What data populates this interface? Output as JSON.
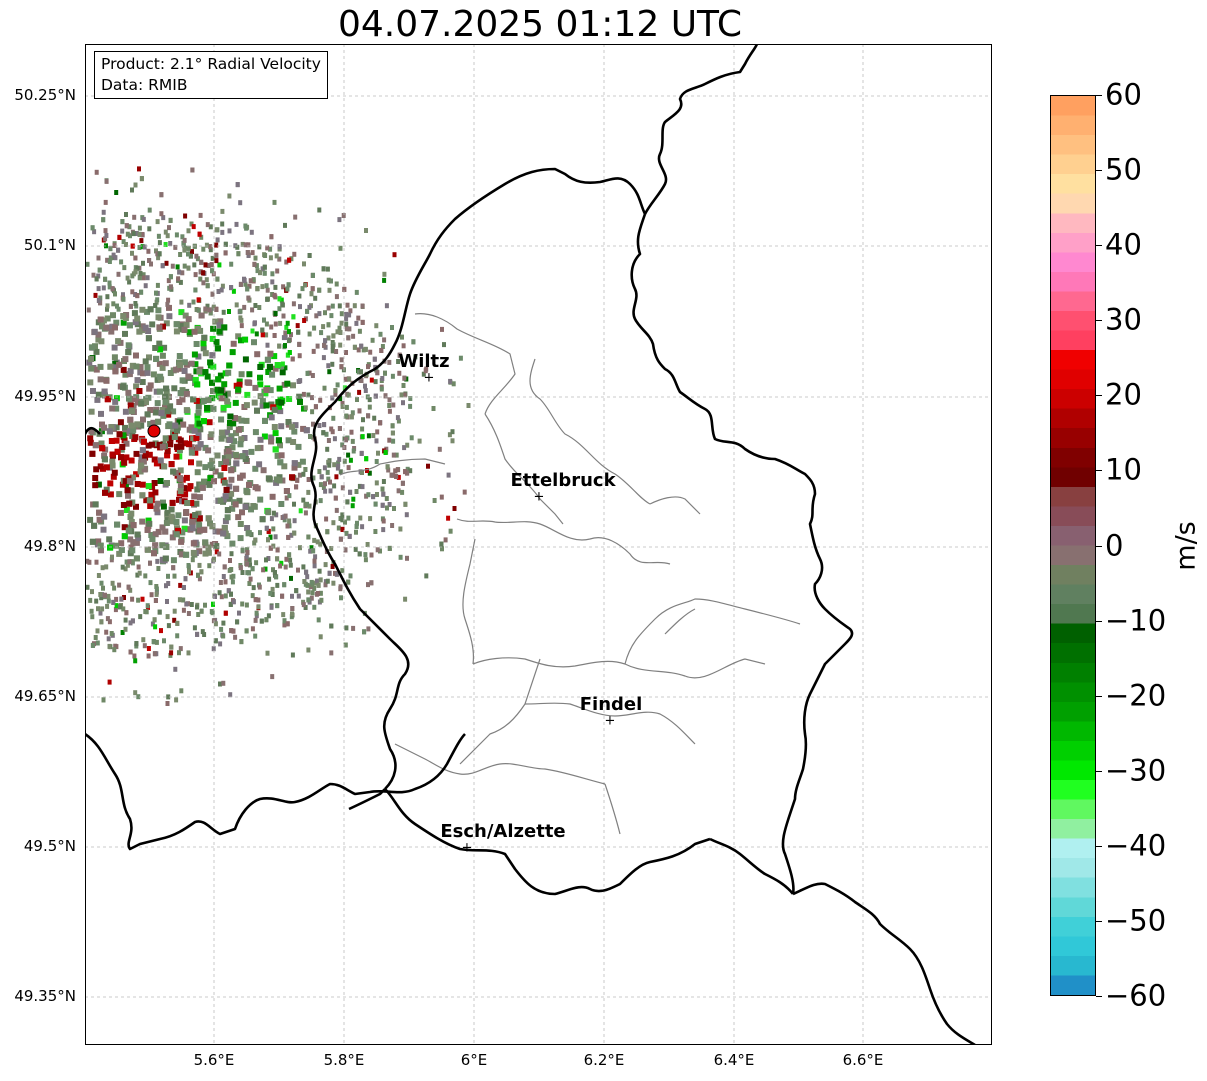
{
  "title": "04.07.2025 01:12 UTC",
  "info": {
    "product": "Product: 2.1° Radial Velocity",
    "data": "Data: RMIB"
  },
  "map": {
    "lat_labels": [
      "50.25°N",
      "50.1°N",
      "49.95°N",
      "49.8°N",
      "49.65°N",
      "49.5°N",
      "49.35°N"
    ],
    "lon_labels": [
      "5.6°E",
      "5.8°E",
      "6°E",
      "6.2°E",
      "6.4°E",
      "6.6°E"
    ],
    "cities": [
      {
        "name": "Wiltz"
      },
      {
        "name": "Ettelbruck"
      },
      {
        "name": "Findel"
      },
      {
        "name": "Esch/Alzette"
      }
    ],
    "radar_site_color": "#e00000"
  },
  "colorbar": {
    "label": "m/s",
    "ticks": [
      "60",
      "50",
      "40",
      "30",
      "20",
      "10",
      "0",
      "−10",
      "−20",
      "−30",
      "−40",
      "−50",
      "−60"
    ],
    "colors_top_to_bottom": [
      "#ffa060",
      "#ffb070",
      "#ffc080",
      "#ffd090",
      "#ffe0a0",
      "#ffd8b0",
      "#ffb8c0",
      "#ffa0c8",
      "#ff88d0",
      "#ff78b8",
      "#ff6890",
      "#ff5070",
      "#ff4060",
      "#f00000",
      "#e00000",
      "#cc0000",
      "#b00000",
      "#980000",
      "#800000",
      "#700000",
      "#884040",
      "#884c58",
      "#886070",
      "#887070",
      "#708060",
      "#608060",
      "#507850",
      "#006000",
      "#007000",
      "#008000",
      "#009000",
      "#00a000",
      "#00b800",
      "#00d000",
      "#00e800",
      "#20ff20",
      "#60f860",
      "#90f0a0",
      "#b0f0f0",
      "#a0e8e8",
      "#80e0e0",
      "#60d8d8",
      "#40d0d8",
      "#30c8d8",
      "#28b8d0",
      "#2090c8"
    ]
  }
}
